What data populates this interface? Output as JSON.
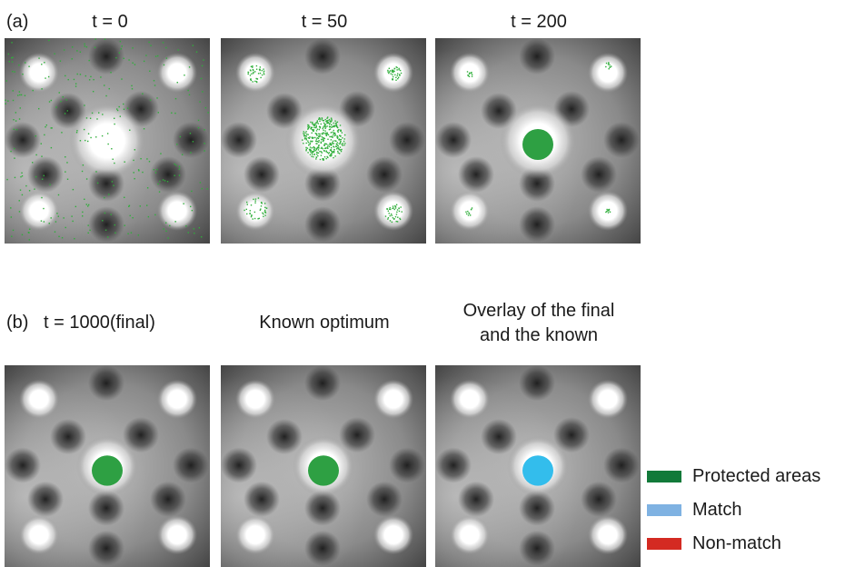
{
  "row_a": {
    "label": "(a)",
    "titles": [
      "t = 0",
      "t = 50",
      "t = 200"
    ]
  },
  "row_b": {
    "label": "(b)",
    "titles": [
      "t = 1000(final)",
      "Known optimum"
    ],
    "overlay_title_line1": "Overlay of the final",
    "overlay_title_line2": "and the known"
  },
  "legend": [
    {
      "label": "Protected areas",
      "color": "#127a3a"
    },
    {
      "label": "Match",
      "color": "#7fb2e2"
    },
    {
      "label": "Non-match",
      "color": "#d42a22"
    }
  ],
  "colors": {
    "protected": "#2ea043",
    "match": "#33bdec",
    "scatter": "#2fae3a"
  }
}
